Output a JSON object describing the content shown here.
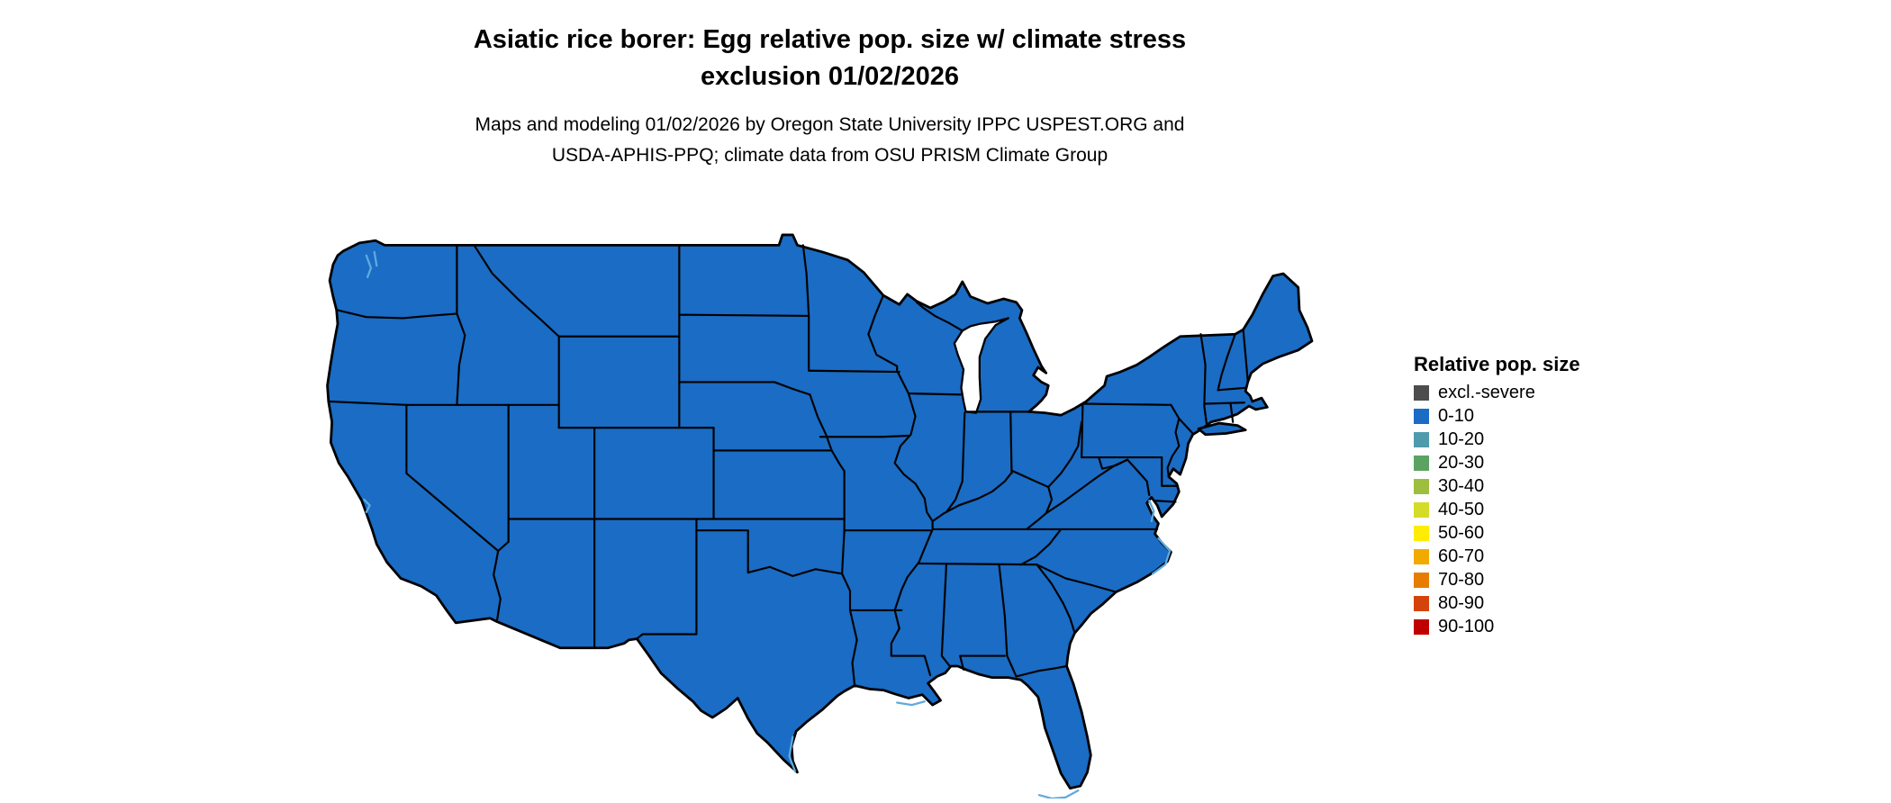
{
  "title": {
    "line1": "Asiatic rice borer: Egg relative pop. size w/ climate stress",
    "line2": "exclusion 01/02/2026"
  },
  "subtitle": {
    "line1": "Maps and modeling 01/02/2026 by Oregon State University IPPC USPEST.ORG and",
    "line2": "USDA-APHIS-PPQ; climate data from OSU PRISM Climate Group"
  },
  "legend": {
    "title": "Relative pop. size",
    "items": [
      {
        "label": "excl.-severe",
        "color": "#4D4D4D"
      },
      {
        "label": "0-10",
        "color": "#1A6CC4"
      },
      {
        "label": "10-20",
        "color": "#4E9BAB"
      },
      {
        "label": "20-30",
        "color": "#5CA363"
      },
      {
        "label": "30-40",
        "color": "#9DBE3F"
      },
      {
        "label": "40-50",
        "color": "#D4DC28"
      },
      {
        "label": "50-60",
        "color": "#FFEC00"
      },
      {
        "label": "60-70",
        "color": "#F2AA00"
      },
      {
        "label": "70-80",
        "color": "#E77D00"
      },
      {
        "label": "80-90",
        "color": "#D4430B"
      },
      {
        "label": "90-100",
        "color": "#C00000"
      }
    ]
  },
  "map": {
    "region": "contiguous United States",
    "uniform_value": "0-10",
    "fill_color": "#1A6CC4",
    "border_color": "#000000",
    "water_color": "#5FAADF",
    "background": "#FFFFFF"
  }
}
